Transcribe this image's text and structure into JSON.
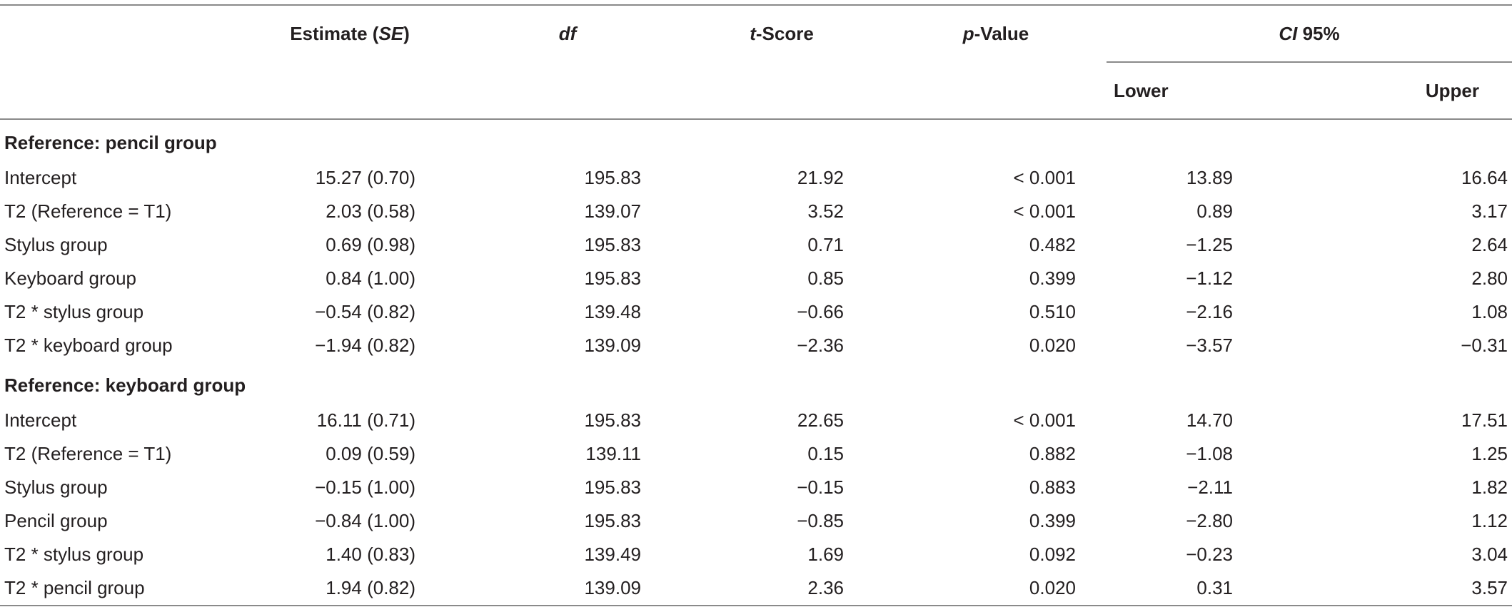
{
  "headers": {
    "estimate_pre": "Estimate (",
    "estimate_se": "SE",
    "estimate_post": ")",
    "df": "df",
    "t_italic": "t",
    "t_rest": "-Score",
    "p_italic": "p",
    "p_rest": "-Value",
    "ci_italic": "CI",
    "ci_rest": " 95%",
    "lower": "Lower",
    "upper": "Upper"
  },
  "sections": [
    {
      "title": "Reference: pencil group",
      "rows": [
        {
          "label": "Intercept",
          "estimate": "15.27 (0.70)",
          "df": "195.83",
          "t": "21.92",
          "p": "< 0.001",
          "lower": "13.89",
          "upper": "16.64"
        },
        {
          "label": "T2 (Reference = T1)",
          "estimate": "2.03 (0.58)",
          "df": "139.07",
          "t": "3.52",
          "p": "< 0.001",
          "lower": "0.89",
          "upper": "3.17"
        },
        {
          "label": "Stylus group",
          "estimate": "0.69 (0.98)",
          "df": "195.83",
          "t": "0.71",
          "p": "0.482",
          "lower": "−1.25",
          "upper": "2.64"
        },
        {
          "label": "Keyboard group",
          "estimate": "0.84 (1.00)",
          "df": "195.83",
          "t": "0.85",
          "p": "0.399",
          "lower": "−1.12",
          "upper": "2.80"
        },
        {
          "label": "T2 * stylus group",
          "estimate": "−0.54 (0.82)",
          "df": "139.48",
          "t": "−0.66",
          "p": "0.510",
          "lower": "−2.16",
          "upper": "1.08"
        },
        {
          "label": "T2 * keyboard group",
          "estimate": "−1.94 (0.82)",
          "df": "139.09",
          "t": "−2.36",
          "p": "0.020",
          "lower": "−3.57",
          "upper": "−0.31"
        }
      ]
    },
    {
      "title": "Reference: keyboard group",
      "rows": [
        {
          "label": "Intercept",
          "estimate": "16.11 (0.71)",
          "df": "195.83",
          "t": "22.65",
          "p": "< 0.001",
          "lower": "14.70",
          "upper": "17.51"
        },
        {
          "label": "T2 (Reference = T1)",
          "estimate": "0.09 (0.59)",
          "df": "139.11",
          "t": "0.15",
          "p": "0.882",
          "lower": "−1.08",
          "upper": "1.25"
        },
        {
          "label": "Stylus group",
          "estimate": "−0.15 (1.00)",
          "df": "195.83",
          "t": "−0.15",
          "p": "0.883",
          "lower": "−2.11",
          "upper": "1.82"
        },
        {
          "label": "Pencil group",
          "estimate": "−0.84 (1.00)",
          "df": "195.83",
          "t": "−0.85",
          "p": "0.399",
          "lower": "−2.80",
          "upper": "1.12"
        },
        {
          "label": "T2 * stylus group",
          "estimate": "1.40 (0.83)",
          "df": "139.49",
          "t": "1.69",
          "p": "0.092",
          "lower": "−0.23",
          "upper": "3.04"
        },
        {
          "label": "T2 * pencil group",
          "estimate": "1.94 (0.82)",
          "df": "139.09",
          "t": "2.36",
          "p": "0.020",
          "lower": "0.31",
          "upper": "3.57"
        }
      ]
    }
  ]
}
